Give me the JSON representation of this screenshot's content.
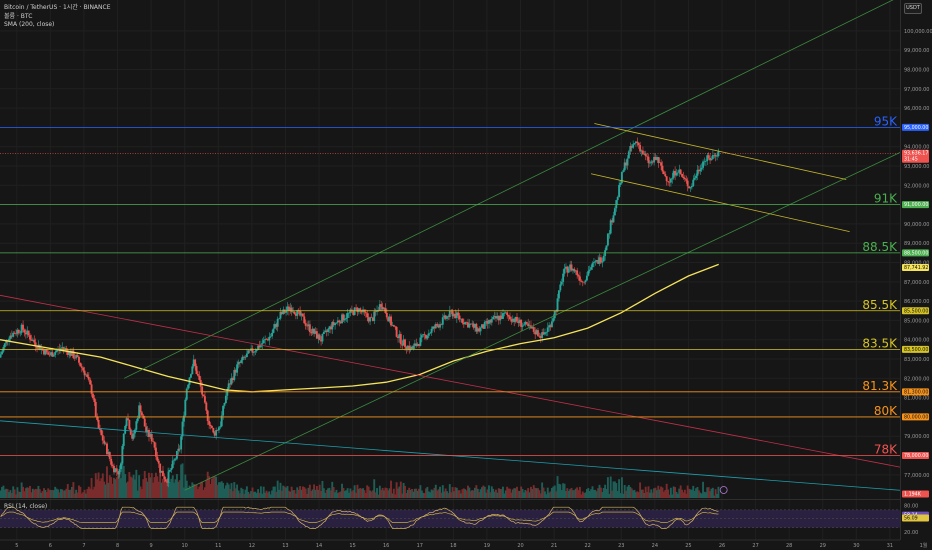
{
  "legend": {
    "title": "Bitcoin / TetherUS · 1시간 · BINANCE",
    "volume": "볼륨 · BTC",
    "sma": "SMA (200, close)",
    "rsi": "RSI (14, close)"
  },
  "currency_button": "USDT",
  "colors": {
    "background": "#161616",
    "candle_up": "#26a69a",
    "candle_down": "#ef5350",
    "sma": "#f5e35c",
    "level_blue": "#2962ff",
    "level_green": "#4caf50",
    "level_yellow": "#d6c326",
    "level_orange": "#f7931a",
    "level_red": "#ef5350",
    "rsi_line": "#d4b26a"
  },
  "chart_data": {
    "type": "candlestick",
    "symbol": "BTC/USDT",
    "exchange": "BINANCE",
    "ylim": [
      75800,
      101600
    ],
    "y_ticks": [
      77000,
      78000,
      79000,
      80000,
      81000,
      82000,
      83000,
      84000,
      85000,
      86000,
      87000,
      88000,
      89000,
      90000,
      91000,
      92000,
      93000,
      94000,
      95000,
      96000,
      97000,
      98000,
      99000,
      100000
    ],
    "y_tick_labels": [
      "77,000.00",
      "78,000.00",
      "79,000.00",
      "80,000.00",
      "81,000.00",
      "82,000.00",
      "83,000.00",
      "84,000.00",
      "85,000.00",
      "86,000.00",
      "87,000.00",
      "88,000.00",
      "89,000.00",
      "90,000.00",
      "91,000.00",
      "92,000.00",
      "93,000.00",
      "94,000.00",
      "95,000.00",
      "96,000.00",
      "97,000.00",
      "98,000.00",
      "99,000.00",
      "100,000.00"
    ],
    "x_day_range": [
      4.5,
      31.3
    ],
    "x_ticks": [
      5,
      6,
      7,
      8,
      9,
      10,
      11,
      12,
      13,
      14,
      15,
      16,
      17,
      18,
      19,
      20,
      21,
      22,
      23,
      24,
      25,
      26,
      27,
      28,
      29,
      30,
      31,
      32
    ],
    "x_tick_labels": [
      "5",
      "6",
      "7",
      "8",
      "9",
      "10",
      "11",
      "12",
      "13",
      "14",
      "15",
      "16",
      "17",
      "18",
      "19",
      "20",
      "21",
      "22",
      "23",
      "24",
      "25",
      "26",
      "27",
      "28",
      "29",
      "30",
      "31",
      "1월"
    ],
    "price_path": [
      [
        4.5,
        83000
      ],
      [
        4.8,
        84200
      ],
      [
        5.2,
        84600
      ],
      [
        5.6,
        83800
      ],
      [
        6.0,
        83200
      ],
      [
        6.4,
        83600
      ],
      [
        6.8,
        83100
      ],
      [
        7.1,
        82200
      ],
      [
        7.3,
        81200
      ],
      [
        7.45,
        79500
      ],
      [
        7.7,
        78400
      ],
      [
        7.9,
        77400
      ],
      [
        8.1,
        77100
      ],
      [
        8.3,
        80200
      ],
      [
        8.5,
        78800
      ],
      [
        8.7,
        80600
      ],
      [
        8.9,
        79200
      ],
      [
        9.1,
        78800
      ],
      [
        9.3,
        77300
      ],
      [
        9.5,
        76700
      ],
      [
        9.7,
        77600
      ],
      [
        9.9,
        78400
      ],
      [
        10.1,
        81500
      ],
      [
        10.3,
        82900
      ],
      [
        10.5,
        81700
      ],
      [
        10.7,
        80100
      ],
      [
        10.9,
        79100
      ],
      [
        11.1,
        79600
      ],
      [
        11.3,
        81400
      ],
      [
        11.6,
        82600
      ],
      [
        11.9,
        83200
      ],
      [
        12.2,
        83600
      ],
      [
        12.6,
        84200
      ],
      [
        12.9,
        85300
      ],
      [
        13.2,
        85700
      ],
      [
        13.5,
        85200
      ],
      [
        13.8,
        84500
      ],
      [
        14.1,
        84000
      ],
      [
        14.4,
        84700
      ],
      [
        14.8,
        85200
      ],
      [
        15.2,
        85600
      ],
      [
        15.6,
        85000
      ],
      [
        15.9,
        85900
      ],
      [
        16.2,
        84800
      ],
      [
        16.5,
        83900
      ],
      [
        16.8,
        83500
      ],
      [
        17.2,
        84200
      ],
      [
        17.6,
        84800
      ],
      [
        18.0,
        85400
      ],
      [
        18.4,
        84900
      ],
      [
        18.8,
        84500
      ],
      [
        19.2,
        85000
      ],
      [
        19.6,
        85300
      ],
      [
        20.0,
        84900
      ],
      [
        20.4,
        84500
      ],
      [
        20.7,
        84200
      ],
      [
        20.9,
        84700
      ],
      [
        21.1,
        85600
      ],
      [
        21.3,
        87400
      ],
      [
        21.5,
        87800
      ],
      [
        21.7,
        87500
      ],
      [
        21.9,
        87000
      ],
      [
        22.1,
        87700
      ],
      [
        22.3,
        88000
      ],
      [
        22.5,
        88300
      ],
      [
        22.7,
        89800
      ],
      [
        22.9,
        91200
      ],
      [
        23.1,
        92800
      ],
      [
        23.3,
        93800
      ],
      [
        23.5,
        94300
      ],
      [
        23.7,
        93600
      ],
      [
        23.9,
        93100
      ],
      [
        24.1,
        93400
      ],
      [
        24.3,
        92600
      ],
      [
        24.5,
        92200
      ],
      [
        24.7,
        92900
      ],
      [
        24.9,
        92300
      ],
      [
        25.1,
        91900
      ],
      [
        25.3,
        92700
      ],
      [
        25.5,
        93300
      ],
      [
        25.7,
        93400
      ],
      [
        25.9,
        93700
      ]
    ],
    "sma_200": [
      [
        4.5,
        84000
      ],
      [
        5.5,
        83700
      ],
      [
        6.5,
        83400
      ],
      [
        7.5,
        83100
      ],
      [
        8.5,
        82600
      ],
      [
        9.5,
        82100
      ],
      [
        10.5,
        81700
      ],
      [
        11.2,
        81400
      ],
      [
        12.0,
        81300
      ],
      [
        13.0,
        81400
      ],
      [
        14.0,
        81500
      ],
      [
        15.0,
        81600
      ],
      [
        16.0,
        81800
      ],
      [
        17.0,
        82200
      ],
      [
        18.0,
        82900
      ],
      [
        19.0,
        83400
      ],
      [
        20.0,
        83800
      ],
      [
        21.0,
        84100
      ],
      [
        22.0,
        84600
      ],
      [
        23.0,
        85400
      ],
      [
        24.0,
        86400
      ],
      [
        25.0,
        87300
      ],
      [
        25.9,
        87900
      ]
    ],
    "horizontal_levels": [
      {
        "label": "95K",
        "price": 95000,
        "price_label": "95,000.00",
        "color": "#2962ff"
      },
      {
        "label": "91K",
        "price": 91000,
        "price_label": "91,000.00",
        "color": "#4caf50"
      },
      {
        "label": "88.5K",
        "price": 88500,
        "price_label": "88,500.00",
        "color": "#4caf50"
      },
      {
        "label": "85.5K",
        "price": 85500,
        "price_label": "85,500.00",
        "color": "#d6c326"
      },
      {
        "label": "83.5K",
        "price": 83500,
        "price_label": "83,500.00",
        "color": "#d6c326"
      },
      {
        "label": "81.3K",
        "price": 81300,
        "price_label": "81,300.00",
        "color": "#f7931a"
      },
      {
        "label": "80K",
        "price": 80000,
        "price_label": "80,000.00",
        "color": "#f7931a"
      },
      {
        "label": "78K",
        "price": 78000,
        "price_label": "78,000.00",
        "color": "#ef5350"
      }
    ],
    "current_price": {
      "price": 93636.17,
      "price_label": "93,636.17",
      "countdown": "31:45",
      "color": "#ef5350"
    },
    "sma_value": {
      "price": 87741.92,
      "price_label": "87,741.92",
      "color": "#f5e35c"
    },
    "trendlines": [
      {
        "name": "channel-upper",
        "color": "#3d8b40",
        "from": [
          8.2,
          82000
        ],
        "to": [
          31.2,
          101700
        ]
      },
      {
        "name": "channel-lower",
        "color": "#3d8b40",
        "from": [
          10.0,
          76200
        ],
        "to": [
          31.3,
          93700
        ]
      },
      {
        "name": "descending-red",
        "color": "#c2304a",
        "from": [
          4.5,
          86300
        ],
        "to": [
          31.3,
          77400
        ]
      },
      {
        "name": "descending-teal",
        "color": "#1e9fb0",
        "from": [
          4.5,
          79800
        ],
        "to": [
          31.3,
          76200
        ]
      },
      {
        "name": "wedge-upper",
        "color": "#c9b92a",
        "from": [
          22.2,
          95200
        ],
        "to": [
          29.7,
          92300
        ]
      },
      {
        "name": "wedge-lower",
        "color": "#c9b92a",
        "from": [
          22.1,
          92600
        ],
        "to": [
          29.8,
          89600
        ]
      }
    ],
    "volume_marker": {
      "label": "1.194K",
      "color": "#ef5350"
    },
    "rsi": {
      "period": 14,
      "ylim": [
        20,
        90
      ],
      "levels": [
        30,
        50,
        70
      ],
      "tick_labels": {
        "top": "80.00",
        "bottom": "20.00"
      },
      "current": {
        "value": 58.14,
        "label": "58.14"
      },
      "ma": {
        "value": 56.09,
        "label": "56.09"
      }
    }
  }
}
